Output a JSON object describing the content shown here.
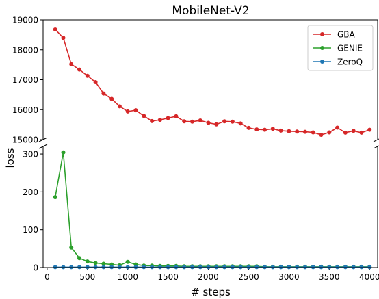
{
  "chart_data": {
    "type": "line",
    "title": "MobileNet-V2",
    "xlabel": "# steps",
    "ylabel": "loss",
    "xlim": [
      -50,
      4100
    ],
    "xticks": [
      0,
      500,
      1000,
      1500,
      2000,
      2500,
      3000,
      3500,
      4000
    ],
    "y_axis_break": true,
    "panels": {
      "upper": {
        "ylim": [
          15000,
          19000
        ],
        "yticks": [
          15000,
          16000,
          17000,
          18000,
          19000
        ]
      },
      "lower": {
        "ylim": [
          0,
          320
        ],
        "yticks": [
          0,
          100,
          200,
          300
        ]
      }
    },
    "legend": {
      "placement": "top-right",
      "entries": [
        "GBA",
        "GENIE",
        "ZeroQ"
      ]
    },
    "grid": false,
    "x": [
      100,
      200,
      300,
      400,
      500,
      600,
      700,
      800,
      900,
      1000,
      1100,
      1200,
      1300,
      1400,
      1500,
      1600,
      1700,
      1800,
      1900,
      2000,
      2100,
      2200,
      2300,
      2400,
      2500,
      2600,
      2700,
      2800,
      2900,
      3000,
      3100,
      3200,
      3300,
      3400,
      3500,
      3600,
      3700,
      3800,
      3900,
      4000
    ],
    "series": [
      {
        "name": "GBA",
        "color": "#d62728",
        "panel": "upper",
        "values": [
          18680,
          18400,
          17520,
          17340,
          17130,
          16920,
          16540,
          16360,
          16110,
          15940,
          15980,
          15790,
          15620,
          15660,
          15720,
          15780,
          15610,
          15600,
          15640,
          15560,
          15510,
          15610,
          15600,
          15540,
          15390,
          15340,
          15330,
          15360,
          15300,
          15280,
          15270,
          15260,
          15240,
          15160,
          15240,
          15400,
          15230,
          15290,
          15230,
          15330
        ]
      },
      {
        "name": "GENIE",
        "color": "#2ca02c",
        "panel": "lower",
        "values": [
          186,
          304,
          53,
          25,
          16,
          12,
          10,
          8,
          6,
          15,
          8,
          5,
          5,
          4,
          4,
          4,
          3,
          3,
          3,
          3,
          3,
          3,
          3,
          3,
          3,
          3,
          2,
          2,
          2,
          2,
          2,
          2,
          2,
          2,
          2,
          2,
          2,
          2,
          2,
          2
        ]
      },
      {
        "name": "ZeroQ",
        "color": "#1f77b4",
        "panel": "lower",
        "values": [
          1,
          1,
          1,
          1,
          1,
          1,
          1,
          1,
          1,
          1,
          1,
          1,
          1,
          1,
          1,
          1,
          1,
          1,
          1,
          1,
          1,
          1,
          1,
          1,
          1,
          1,
          1,
          1,
          1,
          1,
          1,
          1,
          1,
          1,
          1,
          1,
          1,
          1,
          1,
          1
        ]
      }
    ]
  }
}
